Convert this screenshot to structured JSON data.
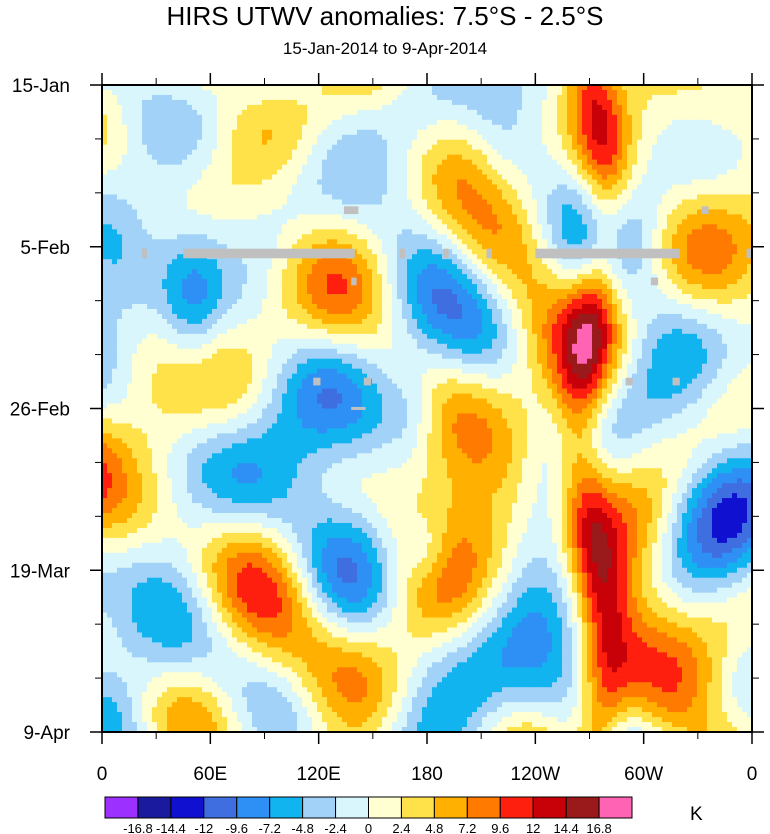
{
  "chart_data": {
    "type": "heatmap",
    "title": "HIRS UTWV anomalies: 7.5°S - 2.5°S",
    "subtitle": "15-Jan-2014 to 9-Apr-2014",
    "x_ticks": [
      "0",
      "60E",
      "120E",
      "180",
      "120W",
      "60W",
      "0"
    ],
    "x_tick_lons": [
      0,
      60,
      120,
      180,
      240,
      300,
      360
    ],
    "y_ticks": [
      "15-Jan",
      "5-Feb",
      "26-Feb",
      "19-Mar",
      "9-Apr"
    ],
    "y_tick_days": [
      0,
      21,
      42,
      63,
      84
    ],
    "xlim": [
      0,
      360
    ],
    "ylim_days": [
      0,
      84
    ],
    "colorbar": {
      "unit": "K",
      "labels": [
        "-16.8",
        "-14.4",
        "-12",
        "-9.6",
        "-7.2",
        "-4.8",
        "-2.4",
        "0",
        "2.4",
        "4.8",
        "7.2",
        "9.6",
        "12",
        "14.4",
        "16.8"
      ],
      "colors": [
        "#9b30ff",
        "#1a1a9e",
        "#1010d0",
        "#3f6ee0",
        "#2e90f4",
        "#12b4f0",
        "#a2d2f7",
        "#d8f6fc",
        "#ffffd2",
        "#ffe24a",
        "#ffb000",
        "#ff7a00",
        "#ff1f0f",
        "#c80008",
        "#9a1a1c",
        "#ff63b4"
      ]
    },
    "features": {
      "missing_data_color": "#c0c0c0",
      "note": "Strong positive anomaly band near 100W-80W; strong negative anomalies near 40-60E and 160E-160W"
    }
  }
}
